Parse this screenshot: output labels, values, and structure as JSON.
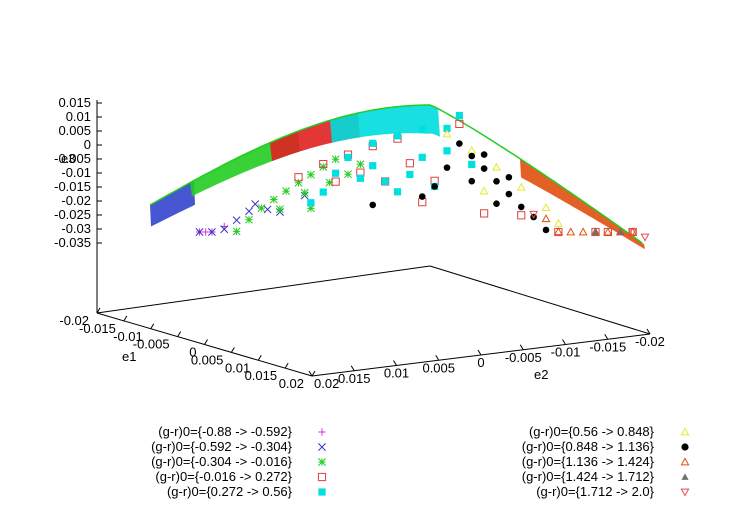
{
  "chart_data": {
    "type": "scatter",
    "projection": "3d",
    "xlabel": "e1",
    "ylabel": "e2",
    "zlabel": "e3",
    "xlim": [
      -0.02,
      0.02
    ],
    "ylim": [
      -0.02,
      0.02
    ],
    "zlim": [
      -0.035,
      0.015
    ],
    "x_ticks": [
      "-0.02",
      "-0.015",
      "-0.01",
      "-0.005",
      "0",
      "0.005",
      "0.01",
      "0.015",
      "0.02"
    ],
    "y_ticks": [
      "0.02",
      "0.015",
      "0.01",
      "0.005",
      "0",
      "-0.005",
      "-0.01",
      "-0.015",
      "-0.02"
    ],
    "z_ticks": [
      "0.015",
      "0.01",
      "0.005",
      "0",
      "-0.005",
      "-0.01",
      "-0.015",
      "-0.02",
      "-0.025",
      "-0.03",
      "-0.035"
    ],
    "grid": false,
    "legend_position": "bottom",
    "series": [
      {
        "name": "(g-r)0={-0.88 -> -0.592}",
        "color": "#d633d6",
        "marker": "plus",
        "points": [
          [
            -0.016,
            0.016,
            -0.021
          ],
          [
            -0.015,
            0.015,
            -0.019
          ],
          [
            -0.014,
            0.0145,
            -0.017
          ],
          [
            -0.0155,
            0.0155,
            -0.02
          ]
        ]
      },
      {
        "name": "(g-r)0={-0.592 -> -0.304}",
        "color": "#3333cc",
        "marker": "cross",
        "points": [
          [
            -0.016,
            0.016,
            -0.022
          ],
          [
            -0.015,
            0.015,
            -0.02
          ],
          [
            -0.014,
            0.014,
            -0.018
          ],
          [
            -0.013,
            0.0135,
            -0.016
          ],
          [
            -0.012,
            0.013,
            -0.014
          ],
          [
            -0.0115,
            0.0125,
            -0.012
          ],
          [
            -0.0105,
            0.0115,
            -0.015
          ],
          [
            -0.0095,
            0.0105,
            -0.017
          ],
          [
            -0.0075,
            0.009,
            -0.013
          ]
        ]
      },
      {
        "name": "(g-r)0={-0.304 -> -0.016}",
        "color": "#22cc22",
        "marker": "star",
        "points": [
          [
            -0.013,
            0.013,
            -0.02
          ],
          [
            -0.012,
            0.012,
            -0.017
          ],
          [
            -0.011,
            0.011,
            -0.014
          ],
          [
            -0.01,
            0.01,
            -0.012
          ],
          [
            -0.009,
            0.009,
            -0.01
          ],
          [
            -0.008,
            0.008,
            -0.008
          ],
          [
            -0.007,
            0.007,
            -0.006
          ],
          [
            -0.006,
            0.006,
            -0.004
          ],
          [
            -0.005,
            0.005,
            -0.002
          ],
          [
            -0.0095,
            0.0095,
            -0.016
          ],
          [
            -0.0075,
            0.0075,
            -0.012
          ],
          [
            -0.0055,
            0.0055,
            -0.01
          ],
          [
            -0.004,
            0.004,
            -0.008
          ],
          [
            -0.007,
            0.007,
            -0.018
          ],
          [
            -0.003,
            0.003,
            -0.005
          ]
        ]
      },
      {
        "name": "(g-r)0={-0.016 -> 0.272}",
        "color": "#e04040",
        "marker": "square-open",
        "points": [
          [
            -0.008,
            0.008,
            -0.006
          ],
          [
            -0.006,
            0.006,
            -0.003
          ],
          [
            -0.004,
            0.004,
            -0.001
          ],
          [
            -0.002,
            0.002,
            0.001
          ],
          [
            0.0,
            0.0,
            0.003
          ],
          [
            -0.005,
            0.005,
            -0.01
          ],
          [
            -0.003,
            0.003,
            -0.008
          ],
          [
            -0.001,
            0.001,
            -0.012
          ],
          [
            0.001,
            -0.001,
            -0.006
          ],
          [
            0.003,
            -0.003,
            -0.012
          ],
          [
            0.007,
            -0.007,
            -0.018
          ],
          [
            0.01,
            -0.01,
            -0.014
          ],
          [
            0.013,
            -0.013,
            -0.017
          ],
          [
            0.016,
            -0.016,
            -0.023
          ],
          [
            0.017,
            -0.017,
            -0.028
          ],
          [
            0.019,
            -0.019,
            -0.033
          ],
          [
            0.005,
            -0.005,
            0.011
          ],
          [
            0.002,
            -0.002,
            -0.02
          ]
        ]
      },
      {
        "name": "(g-r)0={0.272 -> 0.56}",
        "color": "#00e0e0",
        "marker": "square-filled",
        "points": [
          [
            -0.004,
            0.004,
            -0.002
          ],
          [
            -0.002,
            0.002,
            0.002
          ],
          [
            0.0,
            0.0,
            0.004
          ],
          [
            0.002,
            -0.002,
            0.006
          ],
          [
            0.004,
            -0.004,
            0.008
          ],
          [
            -0.003,
            0.003,
            -0.01
          ],
          [
            -0.001,
            0.001,
            -0.012
          ],
          [
            0.001,
            -0.001,
            -0.01
          ],
          [
            0.003,
            -0.003,
            -0.014
          ],
          [
            0.0,
            0.0,
            -0.016
          ],
          [
            0.002,
            -0.002,
            -0.004
          ],
          [
            0.005,
            -0.005,
            0.014
          ],
          [
            -0.006,
            0.006,
            -0.013
          ],
          [
            -0.005,
            0.005,
            -0.007
          ],
          [
            0.004,
            -0.004,
            0.0
          ],
          [
            -0.007,
            0.007,
            -0.016
          ],
          [
            -0.002,
            0.002,
            -0.006
          ],
          [
            0.006,
            -0.006,
            -0.002
          ]
        ]
      },
      {
        "name": "(g-r)0={0.56 -> 0.848}",
        "color": "#e8e830",
        "marker": "triangle-open",
        "points": [
          [
            0.004,
            -0.004,
            0.006
          ],
          [
            0.006,
            -0.006,
            0.003
          ],
          [
            0.008,
            -0.008,
            0.0
          ],
          [
            0.01,
            -0.01,
            -0.004
          ],
          [
            0.012,
            -0.012,
            -0.008
          ],
          [
            0.013,
            -0.013,
            -0.012
          ],
          [
            0.007,
            -0.007,
            -0.01
          ]
        ]
      },
      {
        "name": "(g-r)0={0.848 -> 1.136}",
        "color": "#000000",
        "marker": "circle-filled",
        "points": [
          [
            0.005,
            -0.005,
            0.004
          ],
          [
            0.006,
            -0.006,
            0.001
          ],
          [
            0.007,
            -0.007,
            -0.002
          ],
          [
            0.008,
            -0.008,
            -0.005
          ],
          [
            0.009,
            -0.009,
            -0.008
          ],
          [
            0.01,
            -0.01,
            -0.011
          ],
          [
            0.011,
            -0.011,
            -0.013
          ],
          [
            0.004,
            -0.004,
            -0.006
          ],
          [
            0.003,
            -0.003,
            -0.014
          ],
          [
            0.002,
            -0.002,
            -0.018
          ],
          [
            0.006,
            -0.006,
            -0.008
          ],
          [
            0.008,
            -0.008,
            -0.013
          ],
          [
            0.012,
            -0.012,
            -0.016
          ],
          [
            0.007,
            -0.007,
            0.003
          ],
          [
            -0.002,
            0.002,
            -0.02
          ],
          [
            0.009,
            -0.009,
            -0.002
          ]
        ]
      },
      {
        "name": "(g-r)0={1.136 -> 1.424}",
        "color": "#e05010",
        "marker": "triangle-open",
        "points": [
          [
            0.012,
            -0.012,
            -0.012
          ],
          [
            0.014,
            -0.014,
            -0.016
          ],
          [
            0.015,
            -0.015,
            -0.02
          ],
          [
            0.016,
            -0.016,
            -0.024
          ],
          [
            0.017,
            -0.017,
            -0.027
          ],
          [
            0.018,
            -0.018,
            -0.03
          ],
          [
            0.019,
            -0.019,
            -0.033
          ],
          [
            0.013,
            -0.013,
            -0.015
          ]
        ]
      },
      {
        "name": "(g-r)0={1.424 -> 1.712}",
        "color": "#707070",
        "marker": "triangle-filled",
        "points": [
          [
            0.016,
            -0.016,
            -0.025
          ],
          [
            0.018,
            -0.018,
            -0.031
          ]
        ]
      },
      {
        "name": "(g-r)0={1.712 -> 2.0}",
        "color": "#e05050",
        "marker": "triangle-down-open",
        "points": [
          [
            0.011,
            -0.011,
            -0.012
          ],
          [
            0.019,
            -0.019,
            -0.034
          ],
          [
            0.02,
            -0.02,
            -0.036
          ]
        ]
      }
    ]
  }
}
